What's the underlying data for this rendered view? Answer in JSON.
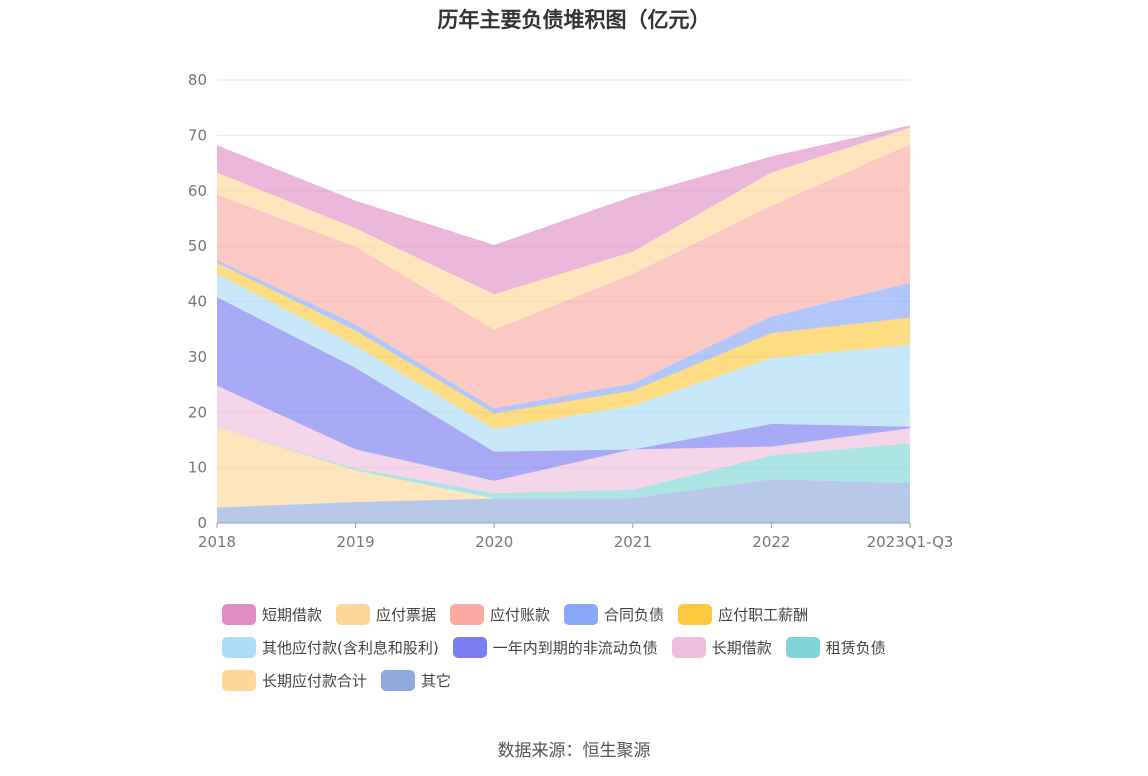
{
  "title": "历年主要负债堆积图（亿元）",
  "source": "数据来源：恒生聚源",
  "chart_data": {
    "type": "area",
    "stacked": true,
    "x": [
      "2018",
      "2019",
      "2020",
      "2021",
      "2022",
      "2023Q1-Q3"
    ],
    "ylim": [
      0,
      80
    ],
    "yticks": [
      0,
      10,
      20,
      30,
      40,
      50,
      60,
      70,
      80
    ],
    "grid": true,
    "legend_position": "bottom",
    "series": [
      {
        "name": "其它",
        "color": "#8fa9dc",
        "values": [
          2.8,
          3.8,
          4.4,
          4.5,
          7.9,
          7.2
        ]
      },
      {
        "name": "长期应付款合计",
        "color": "#fdd79a",
        "values": [
          14.5,
          5.7,
          0,
          0,
          0,
          0
        ]
      },
      {
        "name": "租赁负债",
        "color": "#80d6d6",
        "values": [
          0,
          0.3,
          1.0,
          1.5,
          4.3,
          7.2
        ]
      },
      {
        "name": "长期借款",
        "color": "#eebfdd",
        "values": [
          7.5,
          3.5,
          2.2,
          7.3,
          1.6,
          2.7
        ]
      },
      {
        "name": "一年内到期的非流动负债",
        "color": "#7b7df0",
        "values": [
          16.0,
          14.7,
          5.3,
          0,
          4.1,
          0.3
        ]
      },
      {
        "name": "其他应付款(含利息和股利)",
        "color": "#abdcf8",
        "values": [
          4.2,
          4.0,
          4.1,
          7.9,
          11.9,
          14.8
        ]
      },
      {
        "name": "应付职工薪酬",
        "color": "#fdc93e",
        "values": [
          2.0,
          2.7,
          2.8,
          2.7,
          4.5,
          4.9
        ]
      },
      {
        "name": "合同负债",
        "color": "#89a8f8",
        "values": [
          0.5,
          1.2,
          0.9,
          1.3,
          3.0,
          6.3
        ]
      },
      {
        "name": "应付账款",
        "color": "#fbaaa4",
        "values": [
          11.8,
          14.0,
          14.2,
          19.8,
          20.0,
          25.0
        ]
      },
      {
        "name": "应付票据",
        "color": "#fdd79a",
        "values": [
          4.0,
          3.3,
          6.4,
          4.0,
          6.0,
          3.0
        ]
      },
      {
        "name": "短期借款",
        "color": "#df8fc4",
        "values": [
          4.9,
          5.0,
          8.9,
          10.0,
          2.9,
          0.4
        ]
      }
    ],
    "legend_order": [
      "短期借款",
      "应付票据",
      "应付账款",
      "合同负债",
      "应付职工薪酬",
      "其他应付款(含利息和股利)",
      "一年内到期的非流动负债",
      "长期借款",
      "租赁负债",
      "长期应付款合计",
      "其它"
    ]
  }
}
